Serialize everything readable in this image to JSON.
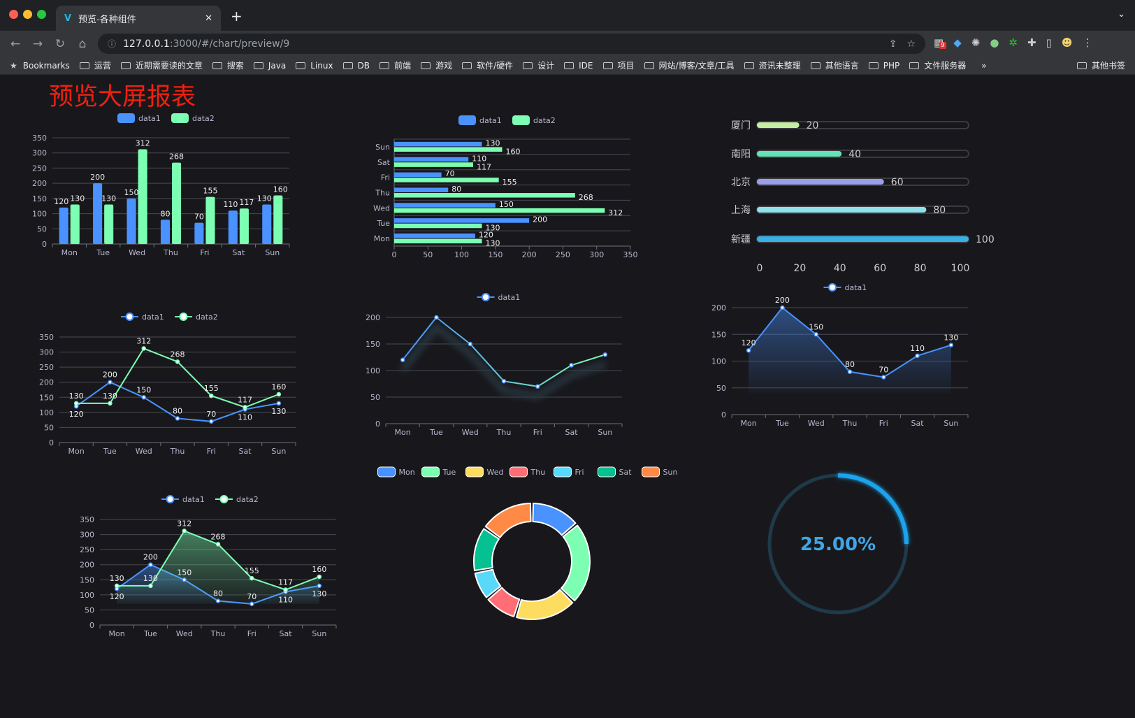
{
  "browser": {
    "tab_title": "预览-各种组件",
    "url_host": "127.0.0.1",
    "url_path": ":3000/#/chart/preview/9",
    "ext_badge": "9",
    "bookmarks": [
      "Bookmarks",
      "运营",
      "近期需要读的文章",
      "搜索",
      "Java",
      "Linux",
      "DB",
      "前端",
      "游戏",
      "软件/硬件",
      "设计",
      "IDE",
      "项目",
      "网站/博客/文章/工具",
      "资讯未整理",
      "其他语言",
      "PHP",
      "文件服务器"
    ],
    "more": "»",
    "other_bookmarks": "其他书签"
  },
  "page": {
    "title": "预览大屏报表"
  },
  "colors": {
    "blue": "#4992ff",
    "green": "#7cffb2",
    "yellow": "#fddd60",
    "red": "#ff6e76",
    "cyan": "#58d9f9",
    "teal": "#05c091",
    "orange": "#ff8a45",
    "title": "#f0200f",
    "gauge": "#1aa3ec"
  },
  "chart_data": [
    {
      "type": "bar",
      "orientation": "vertical",
      "categories": [
        "Mon",
        "Tue",
        "Wed",
        "Thu",
        "Fri",
        "Sat",
        "Sun"
      ],
      "series": [
        {
          "name": "data1",
          "values": [
            120,
            200,
            150,
            80,
            70,
            110,
            130
          ]
        },
        {
          "name": "data2",
          "values": [
            130,
            130,
            312,
            268,
            155,
            117,
            160
          ]
        }
      ],
      "ylim": [
        0,
        350
      ],
      "yticks": [
        0,
        50,
        100,
        150,
        200,
        250,
        300,
        350
      ],
      "legend": "top",
      "grid": true
    },
    {
      "type": "bar",
      "orientation": "horizontal",
      "categories": [
        "Mon",
        "Tue",
        "Wed",
        "Thu",
        "Fri",
        "Sat",
        "Sun"
      ],
      "series": [
        {
          "name": "data1",
          "values": [
            120,
            200,
            150,
            80,
            70,
            110,
            130
          ]
        },
        {
          "name": "data2",
          "values": [
            130,
            130,
            312,
            268,
            155,
            117,
            160
          ]
        }
      ],
      "xlim": [
        0,
        350
      ],
      "xticks": [
        0,
        50,
        100,
        150,
        200,
        250,
        300,
        350
      ],
      "legend": "top",
      "grid": true
    },
    {
      "type": "bar",
      "orientation": "horizontal",
      "style": "progress",
      "categories": [
        "厦门",
        "南阳",
        "北京",
        "上海",
        "新疆"
      ],
      "values": [
        20,
        40,
        60,
        80,
        100
      ],
      "colors": [
        "#c6eda4",
        "#64e3b5",
        "#9c9ee8",
        "#8fe1ea",
        "#3aafe3"
      ],
      "xlim": [
        0,
        100
      ],
      "xticks": [
        0,
        20,
        40,
        60,
        80,
        100
      ]
    },
    {
      "type": "line",
      "categories": [
        "Mon",
        "Tue",
        "Wed",
        "Thu",
        "Fri",
        "Sat",
        "Sun"
      ],
      "series": [
        {
          "name": "data1",
          "values": [
            120,
            200,
            150,
            80,
            70,
            110,
            130
          ]
        },
        {
          "name": "data2",
          "values": [
            130,
            130,
            312,
            268,
            155,
            117,
            160
          ]
        }
      ],
      "ylim": [
        0,
        350
      ],
      "yticks": [
        0,
        50,
        100,
        150,
        200,
        250,
        300,
        350
      ],
      "legend": "top",
      "grid": true
    },
    {
      "type": "line",
      "categories": [
        "Mon",
        "Tue",
        "Wed",
        "Thu",
        "Fri",
        "Sat",
        "Sun"
      ],
      "series": [
        {
          "name": "data1",
          "values": [
            120,
            200,
            150,
            80,
            70,
            110,
            130
          ]
        }
      ],
      "ylim": [
        0,
        200
      ],
      "yticks": [
        0,
        50,
        100,
        150,
        200
      ],
      "legend": "top",
      "grid": true
    },
    {
      "type": "area",
      "categories": [
        "Mon",
        "Tue",
        "Wed",
        "Thu",
        "Fri",
        "Sat",
        "Sun"
      ],
      "series": [
        {
          "name": "data1",
          "values": [
            120,
            200,
            150,
            80,
            70,
            110,
            130
          ]
        }
      ],
      "ylim": [
        0,
        200
      ],
      "yticks": [
        0,
        50,
        100,
        150,
        200
      ],
      "legend": "top",
      "grid": true
    },
    {
      "type": "area",
      "categories": [
        "Mon",
        "Tue",
        "Wed",
        "Thu",
        "Fri",
        "Sat",
        "Sun"
      ],
      "series": [
        {
          "name": "data1",
          "values": [
            120,
            200,
            150,
            80,
            70,
            110,
            130
          ]
        },
        {
          "name": "data2",
          "values": [
            130,
            130,
            312,
            268,
            155,
            117,
            160
          ]
        }
      ],
      "ylim": [
        0,
        350
      ],
      "yticks": [
        0,
        50,
        100,
        150,
        200,
        250,
        300,
        350
      ],
      "legend": "top",
      "grid": true
    },
    {
      "type": "pie",
      "style": "donut",
      "categories": [
        "Mon",
        "Tue",
        "Wed",
        "Thu",
        "Fri",
        "Sat",
        "Sun"
      ],
      "values": [
        120,
        200,
        150,
        80,
        70,
        110,
        130
      ],
      "legend": "top"
    },
    {
      "type": "gauge",
      "value": 0.25,
      "label": "25.00%"
    }
  ]
}
